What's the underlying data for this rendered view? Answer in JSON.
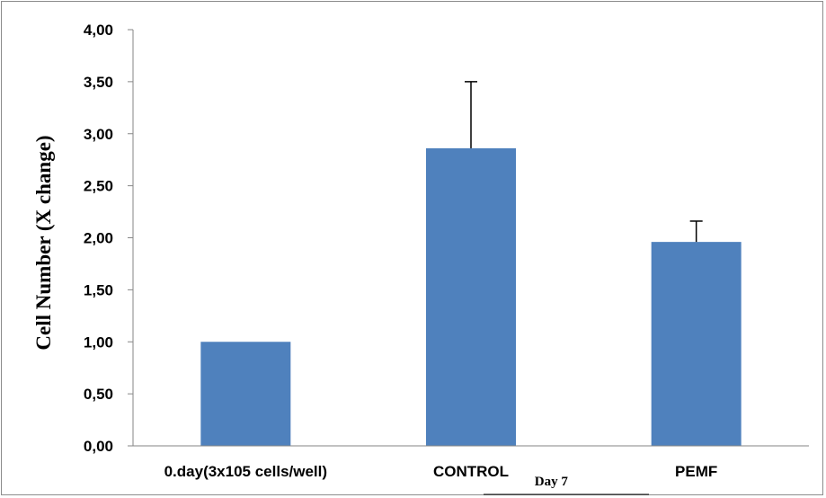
{
  "chart_data": {
    "type": "bar",
    "categories": [
      "0.day(3x105 cells/well)",
      "CONTROL",
      "PEMF"
    ],
    "values": [
      1.0,
      2.86,
      1.96
    ],
    "error_upper": [
      0,
      0.64,
      0.2
    ],
    "title": "",
    "xlabel": "",
    "ylabel": "Cell Number (X change)",
    "ylim": [
      0,
      4
    ],
    "yticks": [
      "0,00",
      "0,50",
      "1,00",
      "1,50",
      "2,00",
      "2,50",
      "3,00",
      "3,50",
      "4,00"
    ],
    "group_label": "Day 7",
    "grid": false,
    "bar_color": "#4F81BD"
  }
}
